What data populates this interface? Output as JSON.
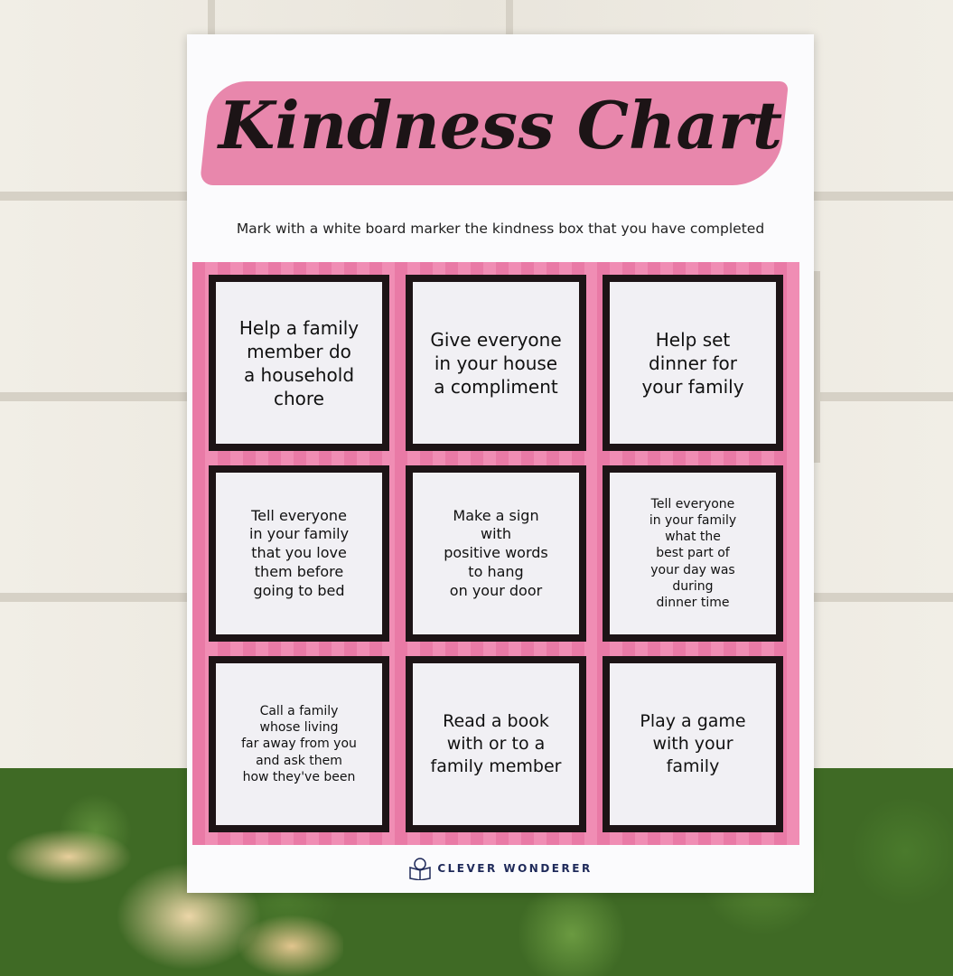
{
  "poster": {
    "title": "Kindness Chart",
    "instruction": "Mark with a white board marker the kindness box that you have completed",
    "accent_color": "#e97aa6",
    "cells": [
      {
        "text": "Help a family\nmember do\na household\nchore",
        "size": 20
      },
      {
        "text": "Give everyone\nin your house\na compliment",
        "size": 20
      },
      {
        "text": "Help set\ndinner for\nyour family",
        "size": 20
      },
      {
        "text": "Tell everyone\nin your family\nthat you love\nthem before\ngoing to bed",
        "size": 16
      },
      {
        "text": "Make a sign\nwith\npositive words\nto hang\non your door",
        "size": 16
      },
      {
        "text": "Tell everyone\nin your family\nwhat the\nbest part of\nyour day was\nduring\ndinner time",
        "size": 14
      },
      {
        "text": "Call a family\nwhose living\nfar away from you\nand ask them\nhow they've been",
        "size": 14
      },
      {
        "text": "Read a book\nwith or to a\nfamily member",
        "size": 19
      },
      {
        "text": "Play a game\nwith your\nfamily",
        "size": 19
      }
    ],
    "logo_text": "CLEVER WONDERER",
    "logo_icon": "book-reader-icon"
  }
}
